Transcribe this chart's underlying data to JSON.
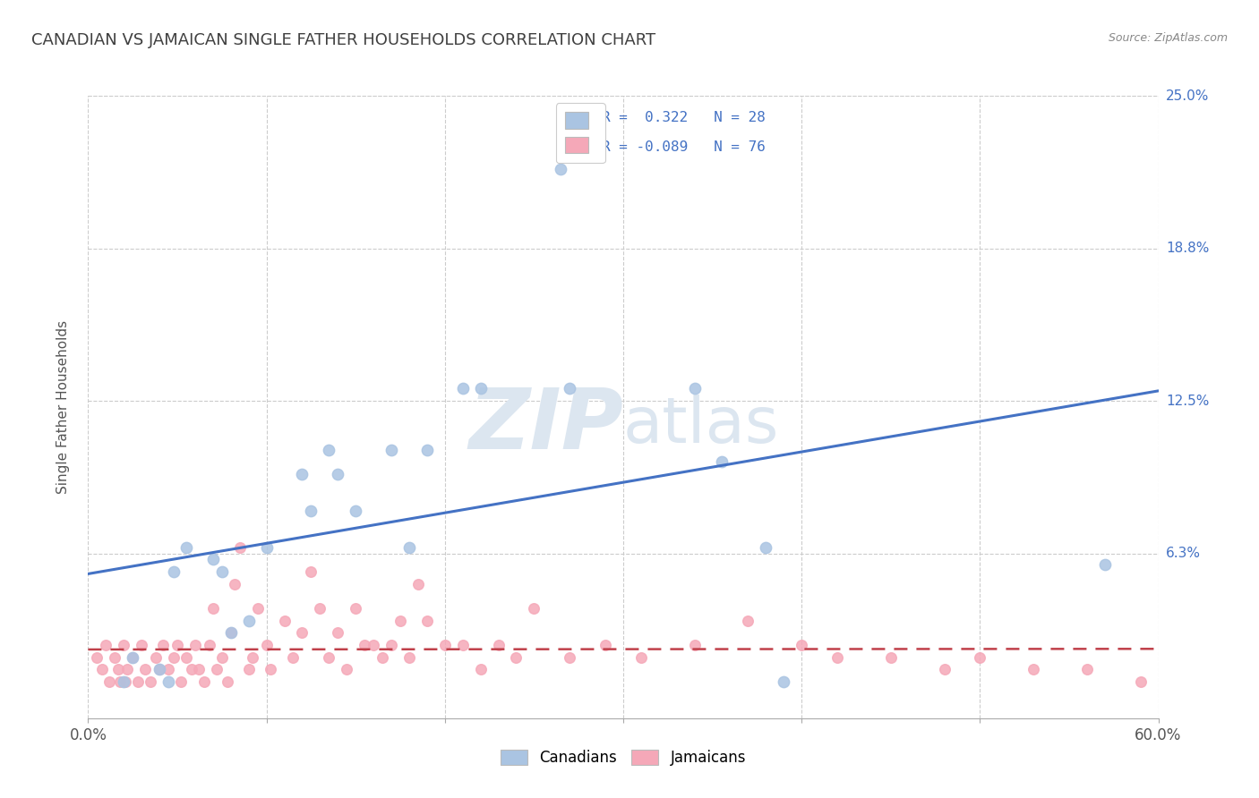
{
  "title": "CANADIAN VS JAMAICAN SINGLE FATHER HOUSEHOLDS CORRELATION CHART",
  "source": "Source: ZipAtlas.com",
  "ylabel": "Single Father Households",
  "xlim": [
    0.0,
    0.6
  ],
  "ylim": [
    -0.005,
    0.25
  ],
  "ytick_vals": [
    0.0,
    0.0625,
    0.125,
    0.1875,
    0.25
  ],
  "ytick_labels": [
    "",
    "6.3%",
    "12.5%",
    "18.8%",
    "25.0%"
  ],
  "xtick_vals": [
    0.0,
    0.1,
    0.2,
    0.3,
    0.4,
    0.5,
    0.6
  ],
  "xtick_labels": [
    "0.0%",
    "",
    "",
    "",
    "",
    "",
    "60.0%"
  ],
  "canadian_R": 0.322,
  "canadian_N": 28,
  "jamaican_R": -0.089,
  "jamaican_N": 76,
  "canadian_color": "#aac4e2",
  "jamaican_color": "#f5a8b8",
  "canadian_line_color": "#4472c4",
  "jamaican_line_color": "#c0404a",
  "watermark_zip": "ZIP",
  "watermark_atlas": "atlas",
  "watermark_color": "#dce6f0",
  "background_color": "#ffffff",
  "grid_color": "#cccccc",
  "title_color": "#404040",
  "right_tick_color": "#4472c4",
  "legend_edge_color": "#cccccc",
  "canadian_x": [
    0.02,
    0.025,
    0.04,
    0.045,
    0.048,
    0.055,
    0.07,
    0.075,
    0.08,
    0.09,
    0.1,
    0.12,
    0.125,
    0.135,
    0.14,
    0.15,
    0.17,
    0.18,
    0.19,
    0.21,
    0.22,
    0.265,
    0.27,
    0.34,
    0.355,
    0.38,
    0.39,
    0.57
  ],
  "canadian_y": [
    0.01,
    0.02,
    0.015,
    0.01,
    0.055,
    0.065,
    0.06,
    0.055,
    0.03,
    0.035,
    0.065,
    0.095,
    0.08,
    0.105,
    0.095,
    0.08,
    0.105,
    0.065,
    0.105,
    0.13,
    0.13,
    0.22,
    0.13,
    0.13,
    0.1,
    0.065,
    0.01,
    0.058
  ],
  "jamaican_x": [
    0.005,
    0.008,
    0.01,
    0.012,
    0.015,
    0.017,
    0.018,
    0.02,
    0.021,
    0.022,
    0.025,
    0.028,
    0.03,
    0.032,
    0.035,
    0.038,
    0.04,
    0.042,
    0.045,
    0.048,
    0.05,
    0.052,
    0.055,
    0.058,
    0.06,
    0.062,
    0.065,
    0.068,
    0.07,
    0.072,
    0.075,
    0.078,
    0.08,
    0.082,
    0.085,
    0.09,
    0.092,
    0.095,
    0.1,
    0.102,
    0.11,
    0.115,
    0.12,
    0.125,
    0.13,
    0.135,
    0.14,
    0.145,
    0.15,
    0.155,
    0.16,
    0.165,
    0.17,
    0.175,
    0.18,
    0.185,
    0.19,
    0.2,
    0.21,
    0.22,
    0.23,
    0.24,
    0.25,
    0.27,
    0.29,
    0.31,
    0.34,
    0.37,
    0.4,
    0.42,
    0.45,
    0.48,
    0.5,
    0.53,
    0.56,
    0.59
  ],
  "jamaican_y": [
    0.02,
    0.015,
    0.025,
    0.01,
    0.02,
    0.015,
    0.01,
    0.025,
    0.01,
    0.015,
    0.02,
    0.01,
    0.025,
    0.015,
    0.01,
    0.02,
    0.015,
    0.025,
    0.015,
    0.02,
    0.025,
    0.01,
    0.02,
    0.015,
    0.025,
    0.015,
    0.01,
    0.025,
    0.04,
    0.015,
    0.02,
    0.01,
    0.03,
    0.05,
    0.065,
    0.015,
    0.02,
    0.04,
    0.025,
    0.015,
    0.035,
    0.02,
    0.03,
    0.055,
    0.04,
    0.02,
    0.03,
    0.015,
    0.04,
    0.025,
    0.025,
    0.02,
    0.025,
    0.035,
    0.02,
    0.05,
    0.035,
    0.025,
    0.025,
    0.015,
    0.025,
    0.02,
    0.04,
    0.02,
    0.025,
    0.02,
    0.025,
    0.035,
    0.025,
    0.02,
    0.02,
    0.015,
    0.02,
    0.015,
    0.015,
    0.01
  ]
}
